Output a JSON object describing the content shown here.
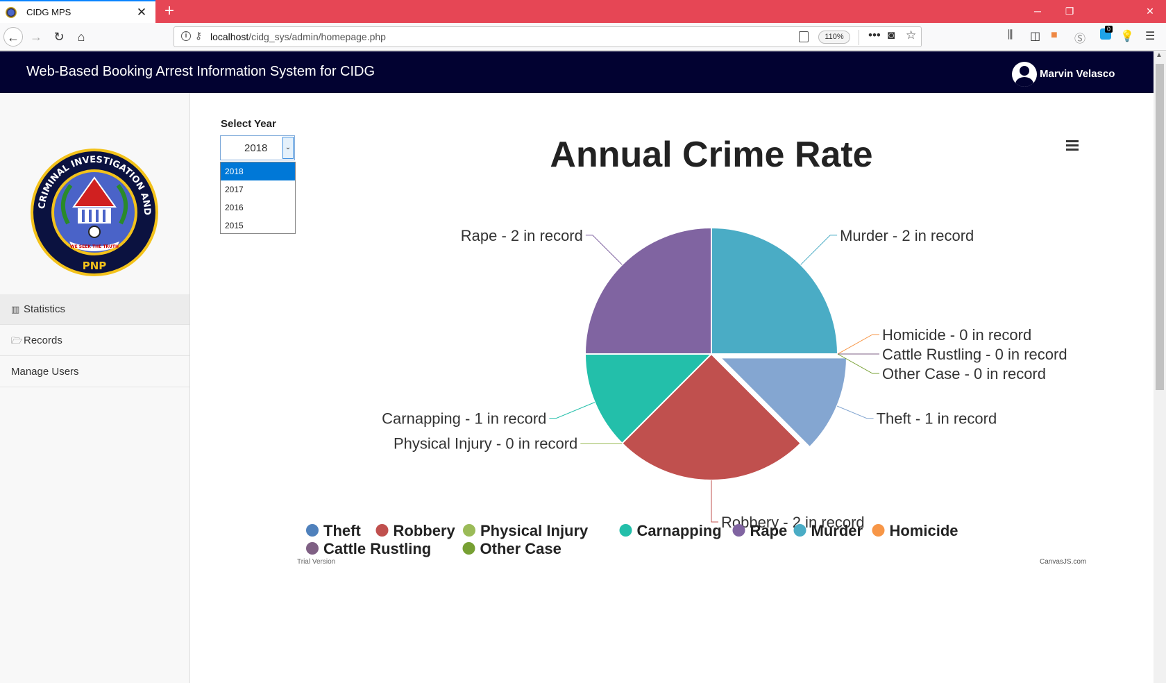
{
  "browser": {
    "tab_title": "CIDG MPS",
    "url_host": "localhost",
    "url_path": "/cidg_sys/admin/homepage.php",
    "zoom": "110%",
    "notification_count": "0"
  },
  "header": {
    "title": "Web-Based Booking Arrest Information System for CIDG",
    "user_name": "Marvin Velasco"
  },
  "sidebar": {
    "logo_text": "CRIMINAL INVESTIGATION AND DETECTION GROUP",
    "logo_motto": "WE SEEK THE TRUTH",
    "logo_pnp": "PNP",
    "items": [
      {
        "label": "Statistics",
        "icon": "bar-chart-icon",
        "active": true
      },
      {
        "label": "Records",
        "icon": "folder-open-icon",
        "active": false
      },
      {
        "label": "Manage Users",
        "icon": "",
        "active": false
      }
    ]
  },
  "year_select": {
    "label": "Select Year",
    "value": "2018",
    "options": [
      "2018",
      "2017",
      "2016",
      "2015"
    ]
  },
  "chart_data": {
    "type": "pie",
    "title": "Annual Crime Rate",
    "label_suffix": " in record",
    "slices": [
      {
        "name": "Theft",
        "value": 1,
        "color": "#84a6d1",
        "exploded": true
      },
      {
        "name": "Robbery",
        "value": 2,
        "color": "#c0504e"
      },
      {
        "name": "Physical Injury",
        "value": 0,
        "color": "#9bbb58"
      },
      {
        "name": "Carnapping",
        "value": 1,
        "color": "#23bfaa"
      },
      {
        "name": "Rape",
        "value": 2,
        "color": "#8064a1"
      },
      {
        "name": "Murder",
        "value": 2,
        "color": "#4aacc5"
      },
      {
        "name": "Homicide",
        "value": 0,
        "color": "#f79647"
      },
      {
        "name": "Cattle Rustling",
        "value": 0,
        "color": "#7f6084"
      },
      {
        "name": "Other Case",
        "value": 0,
        "color": "#77a033"
      }
    ],
    "legend": [
      "Theft",
      "Robbery",
      "Physical Injury",
      "Carnapping",
      "Rape",
      "Murder",
      "Homicide",
      "Cattle Rustling",
      "Other Case"
    ],
    "legend_colors": [
      "#4f81bc",
      "#c0504e",
      "#9bbb58",
      "#23bfaa",
      "#8064a1",
      "#4aacc5",
      "#f79647",
      "#7f6084",
      "#77a033"
    ],
    "legend_placement": "bottom",
    "trial_text": "Trial Version",
    "credit": "CanvasJS.com"
  }
}
